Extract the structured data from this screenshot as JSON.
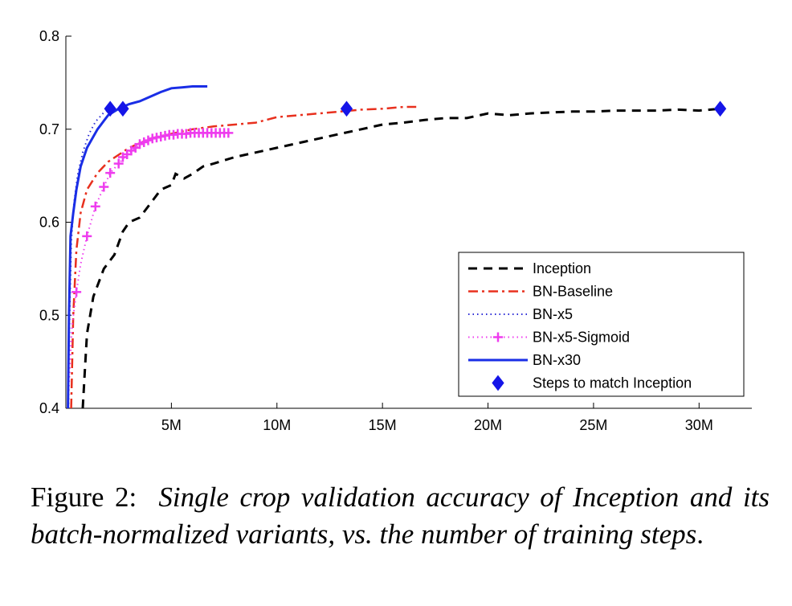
{
  "chart_data": {
    "type": "line",
    "x_ticks": [
      "5M",
      "10M",
      "15M",
      "20M",
      "25M",
      "30M"
    ],
    "x_tick_values": [
      5000000,
      10000000,
      15000000,
      20000000,
      25000000,
      30000000
    ],
    "xlim": [
      0,
      32500000
    ],
    "y_ticks": [
      "0.4",
      "0.5",
      "0.6",
      "0.7",
      "0.8"
    ],
    "y_tick_values": [
      0.4,
      0.5,
      0.6,
      0.7,
      0.8
    ],
    "ylim": [
      0.4,
      0.8
    ],
    "grid": false,
    "legend_position": "lower-right",
    "series": [
      {
        "name": "Inception",
        "color": "#000000",
        "style": "dashed",
        "points": [
          [
            800000,
            0.4
          ],
          [
            900000,
            0.44
          ],
          [
            1000000,
            0.48
          ],
          [
            1300000,
            0.52
          ],
          [
            1800000,
            0.55
          ],
          [
            2300000,
            0.565
          ],
          [
            2700000,
            0.59
          ],
          [
            3000000,
            0.6
          ],
          [
            3500000,
            0.605
          ],
          [
            4000000,
            0.62
          ],
          [
            4500000,
            0.635
          ],
          [
            5000000,
            0.64
          ],
          [
            5200000,
            0.652
          ],
          [
            5600000,
            0.647
          ],
          [
            6000000,
            0.652
          ],
          [
            6500000,
            0.66
          ],
          [
            7000000,
            0.663
          ],
          [
            8000000,
            0.67
          ],
          [
            9000000,
            0.675
          ],
          [
            10000000,
            0.68
          ],
          [
            11000000,
            0.685
          ],
          [
            12000000,
            0.69
          ],
          [
            13000000,
            0.695
          ],
          [
            14000000,
            0.7
          ],
          [
            15000000,
            0.705
          ],
          [
            16000000,
            0.707
          ],
          [
            17000000,
            0.71
          ],
          [
            18000000,
            0.712
          ],
          [
            19000000,
            0.712
          ],
          [
            20000000,
            0.717
          ],
          [
            21000000,
            0.715
          ],
          [
            22000000,
            0.717
          ],
          [
            23000000,
            0.718
          ],
          [
            24000000,
            0.719
          ],
          [
            25000000,
            0.719
          ],
          [
            26000000,
            0.72
          ],
          [
            27000000,
            0.72
          ],
          [
            28000000,
            0.72
          ],
          [
            29000000,
            0.721
          ],
          [
            30000000,
            0.72
          ],
          [
            31000000,
            0.722
          ]
        ]
      },
      {
        "name": "BN-Baseline",
        "color": "#e8301e",
        "style": "dashdot",
        "points": [
          [
            250000,
            0.4
          ],
          [
            350000,
            0.5
          ],
          [
            500000,
            0.57
          ],
          [
            700000,
            0.61
          ],
          [
            1000000,
            0.635
          ],
          [
            1500000,
            0.653
          ],
          [
            2000000,
            0.665
          ],
          [
            3000000,
            0.68
          ],
          [
            4000000,
            0.69
          ],
          [
            5000000,
            0.695
          ],
          [
            6000000,
            0.7
          ],
          [
            7000000,
            0.703
          ],
          [
            8000000,
            0.705
          ],
          [
            9000000,
            0.707
          ],
          [
            10000000,
            0.713
          ],
          [
            11000000,
            0.715
          ],
          [
            12000000,
            0.717
          ],
          [
            13000000,
            0.719
          ],
          [
            14000000,
            0.721
          ],
          [
            15000000,
            0.722
          ],
          [
            16000000,
            0.724
          ],
          [
            16600000,
            0.724
          ]
        ]
      },
      {
        "name": "BN-x5",
        "color": "#2b2bd6",
        "style": "dotted",
        "points": [
          [
            120000,
            0.4
          ],
          [
            180000,
            0.5
          ],
          [
            260000,
            0.58
          ],
          [
            380000,
            0.62
          ],
          [
            550000,
            0.65
          ],
          [
            800000,
            0.675
          ],
          [
            1100000,
            0.695
          ],
          [
            1400000,
            0.708
          ],
          [
            1800000,
            0.718
          ],
          [
            2100000,
            0.722
          ]
        ]
      },
      {
        "name": "BN-x30",
        "color": "#1a2ee6",
        "style": "solid",
        "points": [
          [
            100000,
            0.4
          ],
          [
            150000,
            0.5
          ],
          [
            220000,
            0.585
          ],
          [
            350000,
            0.61
          ],
          [
            500000,
            0.635
          ],
          [
            700000,
            0.66
          ],
          [
            1000000,
            0.68
          ],
          [
            1500000,
            0.7
          ],
          [
            2000000,
            0.715
          ],
          [
            2500000,
            0.722
          ],
          [
            3000000,
            0.727
          ],
          [
            3500000,
            0.73
          ],
          [
            4000000,
            0.735
          ],
          [
            4500000,
            0.74
          ],
          [
            5000000,
            0.744
          ],
          [
            5500000,
            0.745
          ],
          [
            6000000,
            0.746
          ],
          [
            6700000,
            0.746
          ]
        ]
      },
      {
        "name": "BN-x5-Sigmoid",
        "color": "#ee3cee",
        "style": "dotted-plus",
        "points": [
          [
            100000,
            0.4
          ],
          [
            200000,
            0.45
          ],
          [
            300000,
            0.49
          ],
          [
            500000,
            0.525
          ],
          [
            700000,
            0.555
          ],
          [
            1000000,
            0.585
          ],
          [
            1400000,
            0.617
          ],
          [
            1800000,
            0.638
          ],
          [
            2100000,
            0.653
          ],
          [
            2500000,
            0.663
          ],
          [
            2900000,
            0.673
          ],
          [
            3300000,
            0.68
          ],
          [
            3700000,
            0.686
          ],
          [
            4100000,
            0.69
          ],
          [
            4500000,
            0.692
          ],
          [
            4900000,
            0.694
          ],
          [
            5300000,
            0.695
          ],
          [
            5700000,
            0.695
          ],
          [
            6100000,
            0.696
          ],
          [
            6500000,
            0.696
          ],
          [
            6900000,
            0.696
          ],
          [
            7300000,
            0.696
          ],
          [
            7700000,
            0.696
          ]
        ],
        "markers": [
          [
            500000,
            0.525
          ],
          [
            1000000,
            0.585
          ],
          [
            1400000,
            0.617
          ],
          [
            1800000,
            0.638
          ],
          [
            2100000,
            0.653
          ],
          [
            2500000,
            0.663
          ],
          [
            2700000,
            0.67
          ],
          [
            2900000,
            0.673
          ],
          [
            3100000,
            0.677
          ],
          [
            3300000,
            0.68
          ],
          [
            3500000,
            0.684
          ],
          [
            3700000,
            0.686
          ],
          [
            3900000,
            0.688
          ],
          [
            4100000,
            0.69
          ],
          [
            4300000,
            0.691
          ],
          [
            4500000,
            0.692
          ],
          [
            4700000,
            0.693
          ],
          [
            4900000,
            0.694
          ],
          [
            5100000,
            0.694
          ],
          [
            5300000,
            0.695
          ],
          [
            5500000,
            0.695
          ],
          [
            5700000,
            0.695
          ],
          [
            5900000,
            0.696
          ],
          [
            6100000,
            0.696
          ],
          [
            6300000,
            0.696
          ],
          [
            6500000,
            0.696
          ],
          [
            6700000,
            0.696
          ],
          [
            6900000,
            0.696
          ],
          [
            7100000,
            0.696
          ],
          [
            7300000,
            0.696
          ],
          [
            7500000,
            0.696
          ],
          [
            7700000,
            0.696
          ]
        ]
      },
      {
        "name": "Steps to match Inception",
        "color": "#1515e8",
        "style": "diamond-markers",
        "markers": [
          [
            2100000,
            0.722
          ],
          [
            2700000,
            0.722
          ],
          [
            13300000,
            0.722
          ],
          [
            31000000,
            0.722
          ]
        ]
      }
    ]
  },
  "caption": {
    "label": "Figure 2:",
    "text": "Single crop validation accuracy of Inception and its batch-normalized variants, vs.  the number of training steps"
  }
}
